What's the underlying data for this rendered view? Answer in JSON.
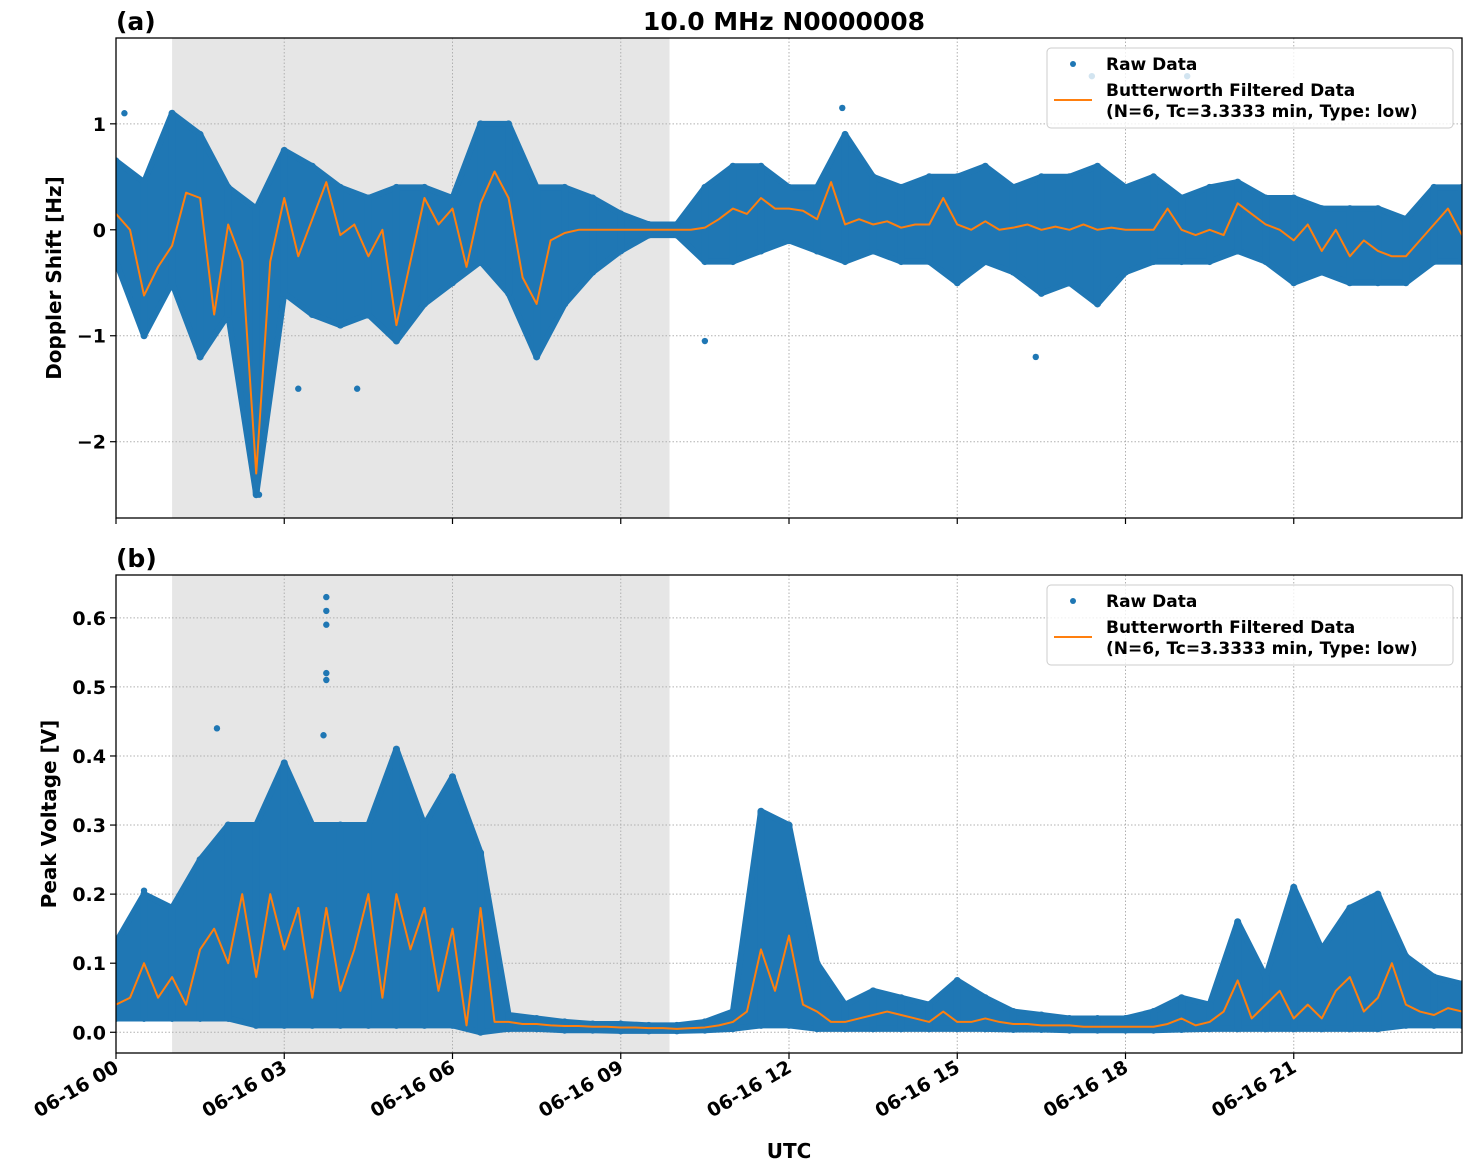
{
  "figure": {
    "title": "10.0 MHz N0000008",
    "xlabel": "UTC",
    "x_tick_labels": [
      "06-16 00",
      "06-16 03",
      "06-16 06",
      "06-16 09",
      "06-16 12",
      "06-16 15",
      "06-16 18",
      "06-16 21"
    ],
    "legend": {
      "raw": "Raw Data",
      "filtered_line1": "Butterworth Filtered Data",
      "filtered_line2": "(N=6, Tc=3.3333 min, Type: low)"
    },
    "colors": {
      "raw": "#1f77b4",
      "filtered": "#ff7f0e",
      "shade": "#e6e6e6"
    }
  },
  "chart_data": [
    {
      "type": "scatter",
      "panel_label": "(a)",
      "title": "10.0 MHz N0000008",
      "xlabel": "",
      "ylabel": "Doppler Shift [Hz]",
      "x_unit": "hours UTC on 06-16",
      "xlim": [
        0,
        24
      ],
      "ylim": [
        -2.72,
        1.81
      ],
      "y_ticks": [
        1,
        0,
        -1,
        -2
      ],
      "y_tick_labels": [
        "1",
        "0",
        "−1",
        "−2"
      ],
      "grid": true,
      "legend_position": "top-right",
      "shaded_interval": [
        1.0,
        9.87
      ],
      "series": [
        {
          "name": "Raw Data",
          "kind": "scatter",
          "x_step": 0.5,
          "low": [
            -0.3,
            -1.0,
            -0.5,
            -1.2,
            -0.8,
            -2.5,
            -0.6,
            -0.8,
            -0.9,
            -0.8,
            -1.05,
            -0.7,
            -0.5,
            -0.3,
            -0.6,
            -1.2,
            -0.7,
            -0.4,
            -0.2,
            -0.05,
            -0.05,
            -0.3,
            -0.3,
            -0.2,
            -0.1,
            -0.2,
            -0.3,
            -0.2,
            -0.3,
            -0.3,
            -0.5,
            -0.3,
            -0.4,
            -0.6,
            -0.5,
            -0.7,
            -0.4,
            -0.3,
            -0.3,
            -0.3,
            -0.2,
            -0.3,
            -0.5,
            -0.4,
            -0.5,
            -0.5,
            -0.5,
            -0.3,
            -0.3
          ],
          "high": [
            0.65,
            0.45,
            1.1,
            0.9,
            0.4,
            0.2,
            0.75,
            0.6,
            0.4,
            0.3,
            0.4,
            0.4,
            0.3,
            1.0,
            1.0,
            0.4,
            0.4,
            0.3,
            0.15,
            0.05,
            0.05,
            0.4,
            0.6,
            0.6,
            0.4,
            0.4,
            0.9,
            0.5,
            0.4,
            0.5,
            0.5,
            0.6,
            0.4,
            0.5,
            0.5,
            0.6,
            0.4,
            0.5,
            0.3,
            0.4,
            0.45,
            0.3,
            0.3,
            0.2,
            0.2,
            0.2,
            0.1,
            0.4,
            0.4
          ],
          "outliers": [
            [
              0.15,
              1.1
            ],
            [
              2.55,
              -2.5
            ],
            [
              3.25,
              -1.5
            ],
            [
              4.3,
              -1.5
            ],
            [
              10.5,
              -1.05
            ],
            [
              12.95,
              1.15
            ],
            [
              16.4,
              -1.2
            ],
            [
              17.4,
              1.45
            ],
            [
              19.1,
              1.45
            ]
          ]
        },
        {
          "name": "Butterworth Filtered Data (N=6, Tc=3.3333 min, Type: low)",
          "kind": "line",
          "x_step": 0.25,
          "values": [
            0.15,
            0.0,
            -0.62,
            -0.35,
            -0.15,
            0.35,
            0.3,
            -0.8,
            0.05,
            -0.3,
            -2.3,
            -0.3,
            0.3,
            -0.25,
            0.1,
            0.45,
            -0.05,
            0.05,
            -0.25,
            0.0,
            -0.9,
            -0.3,
            0.3,
            0.05,
            0.2,
            -0.35,
            0.25,
            0.55,
            0.3,
            -0.45,
            -0.7,
            -0.1,
            -0.03,
            0.0,
            0.0,
            0.0,
            0.0,
            0.0,
            0.0,
            0.0,
            0.0,
            0.0,
            0.02,
            0.1,
            0.2,
            0.15,
            0.3,
            0.2,
            0.2,
            0.18,
            0.1,
            0.45,
            0.05,
            0.1,
            0.05,
            0.08,
            0.02,
            0.05,
            0.05,
            0.3,
            0.05,
            0.0,
            0.08,
            0.0,
            0.02,
            0.05,
            0.0,
            0.03,
            0.0,
            0.05,
            0.0,
            0.02,
            0.0,
            0.0,
            0.0,
            0.2,
            0.0,
            -0.05,
            0.0,
            -0.05,
            0.25,
            0.15,
            0.05,
            0.0,
            -0.1,
            0.05,
            -0.2,
            0.0,
            -0.25,
            -0.1,
            -0.2,
            -0.25,
            -0.25,
            -0.1,
            0.05,
            0.2,
            -0.05
          ]
        }
      ]
    },
    {
      "type": "scatter",
      "panel_label": "(b)",
      "xlabel": "UTC",
      "ylabel": "Peak Voltage [V]",
      "x_unit": "hours UTC on 06-16",
      "xlim": [
        0,
        24
      ],
      "ylim": [
        -0.03,
        0.662
      ],
      "y_ticks": [
        0.0,
        0.1,
        0.2,
        0.3,
        0.4,
        0.5,
        0.6
      ],
      "y_tick_labels": [
        "0.0",
        "0.1",
        "0.2",
        "0.3",
        "0.4",
        "0.5",
        "0.6"
      ],
      "grid": true,
      "legend_position": "top-right",
      "shaded_interval": [
        1.0,
        9.87
      ],
      "series": [
        {
          "name": "Raw Data",
          "kind": "scatter",
          "x_step": 0.5,
          "low": [
            0.02,
            0.02,
            0.02,
            0.02,
            0.02,
            0.01,
            0.01,
            0.01,
            0.01,
            0.01,
            0.01,
            0.01,
            0.01,
            0.0,
            0.005,
            0.005,
            0.003,
            0.003,
            0.002,
            0.002,
            0.002,
            0.003,
            0.005,
            0.01,
            0.01,
            0.005,
            0.005,
            0.005,
            0.005,
            0.005,
            0.005,
            0.005,
            0.004,
            0.004,
            0.003,
            0.003,
            0.003,
            0.003,
            0.004,
            0.005,
            0.005,
            0.005,
            0.005,
            0.005,
            0.005,
            0.005,
            0.01,
            0.01,
            0.01
          ],
          "high": [
            0.13,
            0.2,
            0.18,
            0.25,
            0.3,
            0.3,
            0.39,
            0.3,
            0.3,
            0.3,
            0.41,
            0.3,
            0.37,
            0.26,
            0.025,
            0.02,
            0.015,
            0.012,
            0.012,
            0.01,
            0.01,
            0.015,
            0.03,
            0.32,
            0.3,
            0.1,
            0.04,
            0.06,
            0.05,
            0.04,
            0.075,
            0.05,
            0.03,
            0.025,
            0.02,
            0.02,
            0.02,
            0.03,
            0.05,
            0.04,
            0.16,
            0.08,
            0.21,
            0.12,
            0.18,
            0.2,
            0.11,
            0.08,
            0.07
          ],
          "outliers": [
            [
              3.75,
              0.63
            ],
            [
              3.75,
              0.61
            ],
            [
              3.75,
              0.59
            ],
            [
              3.75,
              0.52
            ],
            [
              3.75,
              0.51
            ],
            [
              1.8,
              0.44
            ],
            [
              3.7,
              0.43
            ],
            [
              0.5,
              0.205
            ]
          ]
        },
        {
          "name": "Butterworth Filtered Data (N=6, Tc=3.3333 min, Type: low)",
          "kind": "line",
          "x_step": 0.25,
          "values": [
            0.04,
            0.05,
            0.1,
            0.05,
            0.08,
            0.04,
            0.12,
            0.15,
            0.1,
            0.2,
            0.08,
            0.2,
            0.12,
            0.18,
            0.05,
            0.18,
            0.06,
            0.12,
            0.2,
            0.05,
            0.2,
            0.12,
            0.18,
            0.06,
            0.15,
            0.01,
            0.18,
            0.015,
            0.015,
            0.012,
            0.012,
            0.01,
            0.009,
            0.009,
            0.008,
            0.008,
            0.007,
            0.007,
            0.006,
            0.006,
            0.005,
            0.006,
            0.007,
            0.01,
            0.015,
            0.03,
            0.12,
            0.06,
            0.14,
            0.04,
            0.03,
            0.015,
            0.015,
            0.02,
            0.025,
            0.03,
            0.025,
            0.02,
            0.015,
            0.03,
            0.015,
            0.015,
            0.02,
            0.015,
            0.012,
            0.012,
            0.01,
            0.01,
            0.01,
            0.008,
            0.008,
            0.008,
            0.008,
            0.008,
            0.008,
            0.012,
            0.02,
            0.01,
            0.015,
            0.03,
            0.075,
            0.02,
            0.04,
            0.06,
            0.02,
            0.04,
            0.02,
            0.06,
            0.08,
            0.03,
            0.05,
            0.1,
            0.04,
            0.03,
            0.025,
            0.035,
            0.03
          ]
        }
      ]
    }
  ]
}
